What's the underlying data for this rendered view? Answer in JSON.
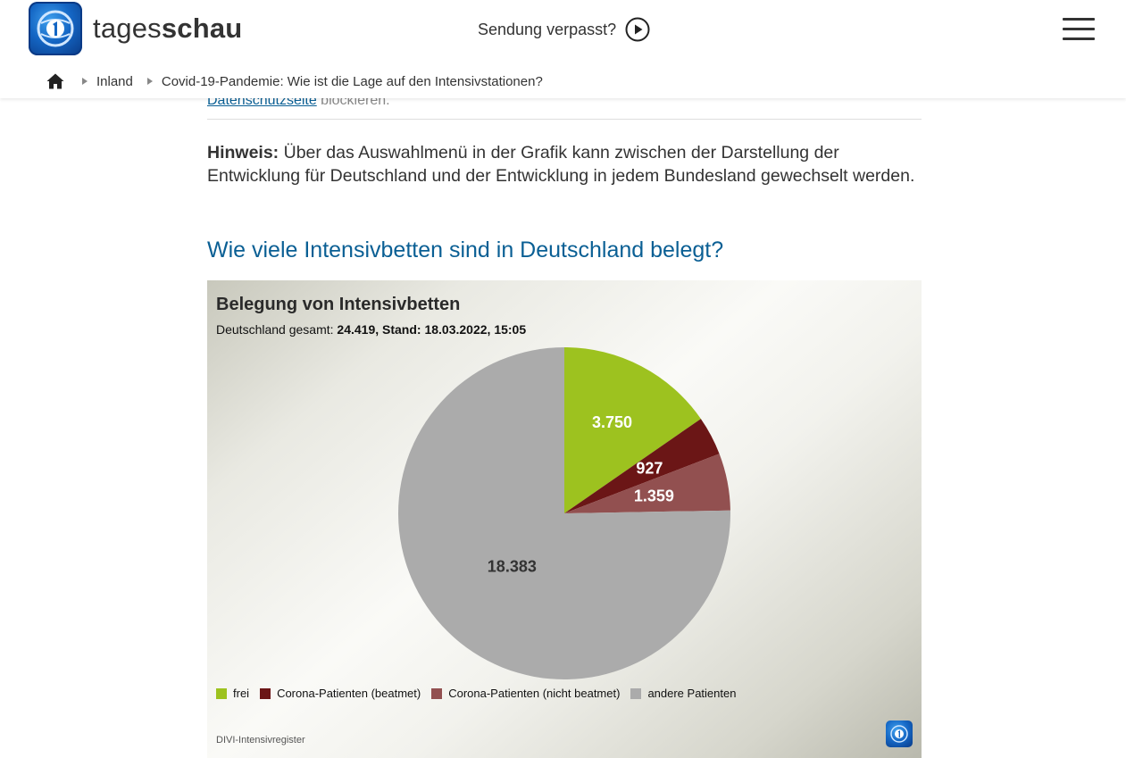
{
  "header": {
    "brand_light": "tages",
    "brand_bold": "schau",
    "missed_label": "Sendung verpasst?"
  },
  "breadcrumb": {
    "items": [
      "Inland",
      "Covid-19-Pandemie: Wie ist die Lage auf den Intensivstationen?"
    ]
  },
  "article": {
    "cut_link": "Datenschutzseite",
    "cut_rest": " blockieren.",
    "hint_label": "Hinweis:",
    "hint_text": " Über das Auswahlmenü in der Grafik kann zwischen der Darstellung der Entwicklung für Deutschland und der Entwicklung in jedem Bundesland gewechselt werden.",
    "section_title": "Wie viele Intensivbetten sind in Deutschland belegt?"
  },
  "chart_data": {
    "type": "pie",
    "title": "Belegung von Intensivbetten",
    "subtitle_prefix": "Deutschland gesamt: ",
    "total_label": "24.419",
    "stand_prefix": ", Stand: ",
    "stand_value": "18.03.2022, 15:05",
    "slices": [
      {
        "name": "frei",
        "value": 3750,
        "label": "3.750",
        "color": "#9dc21f"
      },
      {
        "name": "Corona-Patienten (beatmet)",
        "value": 927,
        "label": "927",
        "color": "#6b1616"
      },
      {
        "name": "Corona-Patienten (nicht beatmet)",
        "value": 1359,
        "label": "1.359",
        "color": "#925050"
      },
      {
        "name": "andere Patienten",
        "value": 18383,
        "label": "18.383",
        "color": "#ababab"
      }
    ],
    "legend_position": "bottom-left",
    "source": "DIVI-Intensivregister"
  }
}
